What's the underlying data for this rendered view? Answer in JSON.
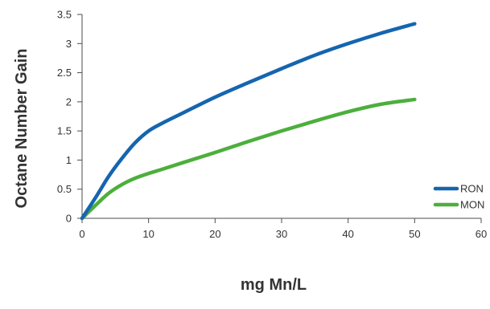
{
  "chart_data": {
    "type": "line",
    "title": "",
    "xlabel": "mg Mn/L",
    "ylabel": "Octane Number Gain",
    "xlim": [
      0,
      60
    ],
    "ylim": [
      0,
      3.5
    ],
    "x_ticks": [
      "0",
      "10",
      "20",
      "30",
      "40",
      "50",
      "60"
    ],
    "y_ticks": [
      "0",
      "0.5",
      "1",
      "1.5",
      "2",
      "2.5",
      "3",
      "3.5"
    ],
    "grid": false,
    "legend_position": "right",
    "series": [
      {
        "name": "RON",
        "color": "#1565b0",
        "x": [
          0,
          2,
          4,
          6,
          8,
          10,
          12,
          15,
          20,
          25,
          30,
          35,
          40,
          45,
          50
        ],
        "y": [
          0,
          0.35,
          0.72,
          1.03,
          1.3,
          1.5,
          1.63,
          1.8,
          2.08,
          2.33,
          2.57,
          2.8,
          3.0,
          3.18,
          3.34
        ]
      },
      {
        "name": "MON",
        "color": "#4caf3c",
        "x": [
          0,
          2,
          4,
          6,
          8,
          10,
          12,
          15,
          20,
          25,
          30,
          35,
          40,
          45,
          50
        ],
        "y": [
          0,
          0.22,
          0.43,
          0.58,
          0.69,
          0.77,
          0.84,
          0.95,
          1.13,
          1.32,
          1.5,
          1.67,
          1.83,
          1.96,
          2.04
        ]
      }
    ]
  }
}
